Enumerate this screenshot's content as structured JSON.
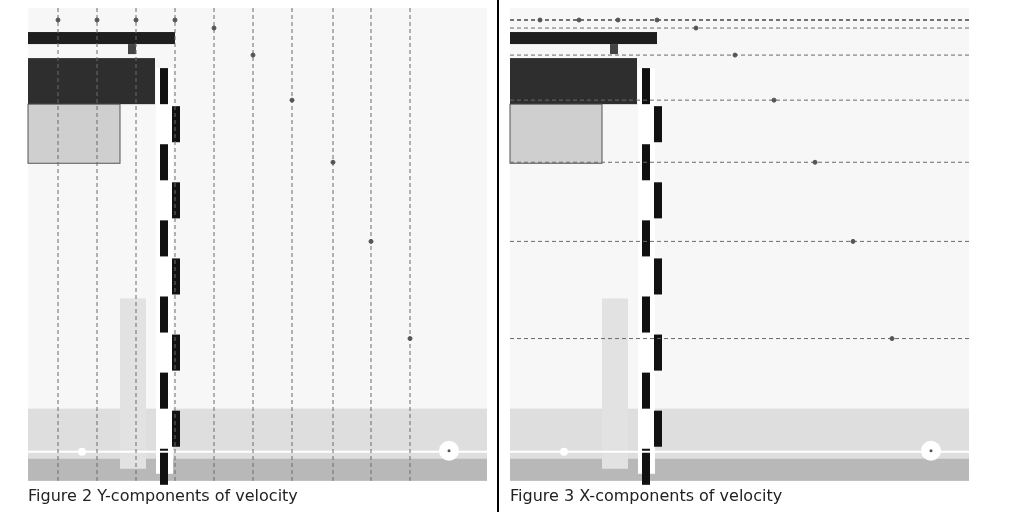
{
  "chart_data": [
    {
      "type": "scatter",
      "title": "Figure 2 Y-components of velocity",
      "x": [
        30,
        69,
        108,
        147,
        186,
        225,
        264,
        305,
        343,
        382
      ],
      "values": [
        460,
        460,
        460,
        460,
        452,
        425,
        380,
        318,
        239,
        142
      ],
      "xlim": [
        0,
        459
      ],
      "ylim": [
        0,
        472
      ],
      "color": "#555555",
      "marker": "circle",
      "line_style": "dashed",
      "grid": false,
      "tick_labels": false
    },
    {
      "type": "scatter",
      "title": "Figure 3 X-components of velocity",
      "x": [
        30,
        69,
        108,
        147,
        186,
        225,
        264,
        305,
        343,
        382
      ],
      "values": [
        460,
        460,
        460,
        460,
        452,
        425,
        380,
        318,
        239,
        142
      ],
      "xlim": [
        0,
        459
      ],
      "ylim": [
        0,
        472
      ],
      "color": "#555555",
      "marker": "circle",
      "line_style": "dashed",
      "grid": false,
      "tick_labels": false
    }
  ]
}
